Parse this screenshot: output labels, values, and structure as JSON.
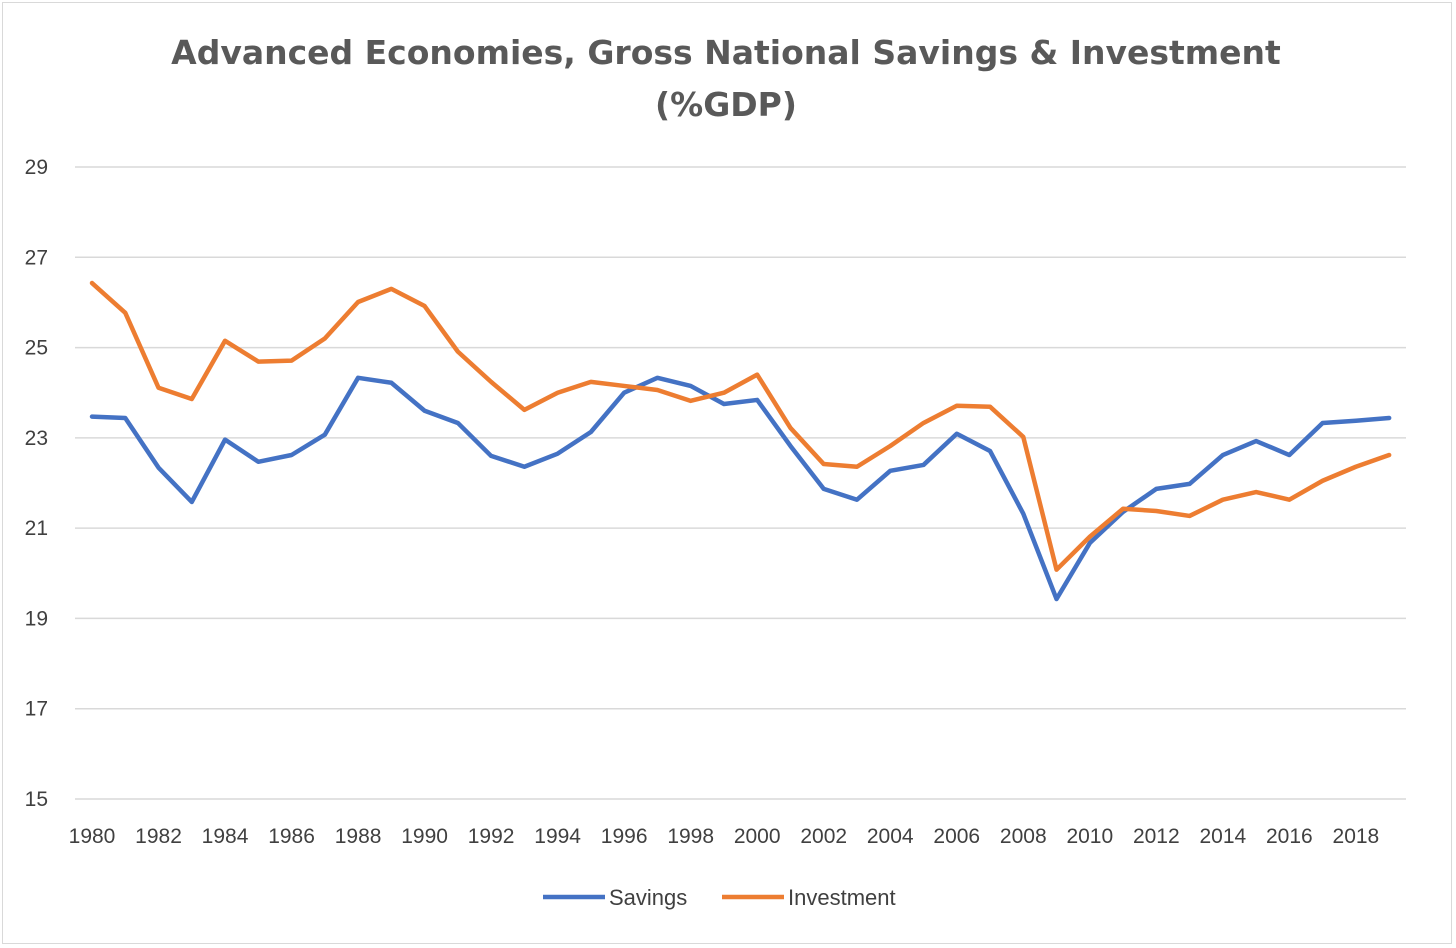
{
  "chart_data": {
    "type": "line",
    "title": "Advanced Economies, Gross National Savings & Investment",
    "subtitle": "(%GDP)",
    "xlabel": "",
    "ylabel": "",
    "ylim": [
      15,
      29
    ],
    "yticks": [
      15,
      17,
      19,
      21,
      23,
      25,
      27,
      29
    ],
    "xtick_labels": [
      "1980",
      "1982",
      "1984",
      "1986",
      "1988",
      "1990",
      "1992",
      "1994",
      "1996",
      "1998",
      "2000",
      "2002",
      "2004",
      "2006",
      "2008",
      "2010",
      "2012",
      "2014",
      "2016",
      "2018"
    ],
    "grid": true,
    "legend_position": "bottom",
    "x": [
      1980,
      1981,
      1982,
      1983,
      1984,
      1985,
      1986,
      1987,
      1988,
      1989,
      1990,
      1991,
      1992,
      1993,
      1994,
      1995,
      1996,
      1997,
      1998,
      1999,
      2000,
      2001,
      2002,
      2003,
      2004,
      2005,
      2006,
      2007,
      2008,
      2009,
      2010,
      2011,
      2012,
      2013,
      2014,
      2015,
      2016,
      2017,
      2018,
      2019
    ],
    "series": [
      {
        "name": "Savings",
        "color": "#4472c4",
        "values": [
          23.47,
          23.44,
          22.34,
          21.58,
          22.96,
          22.47,
          22.62,
          23.07,
          24.33,
          24.22,
          23.6,
          23.33,
          22.6,
          22.36,
          22.65,
          23.13,
          24.0,
          24.33,
          24.15,
          23.75,
          23.84,
          22.82,
          21.87,
          21.63,
          22.27,
          22.4,
          23.09,
          22.71,
          21.32,
          19.43,
          20.67,
          21.36,
          21.87,
          21.98,
          22.62,
          22.93,
          22.62,
          23.33,
          23.38,
          23.44
        ]
      },
      {
        "name": "Investment",
        "color": "#ed7d31",
        "values": [
          26.43,
          25.77,
          24.11,
          23.86,
          25.15,
          24.69,
          24.71,
          25.2,
          26.01,
          26.3,
          25.92,
          24.91,
          24.24,
          23.62,
          24.0,
          24.24,
          24.15,
          24.06,
          23.82,
          24.0,
          24.4,
          23.22,
          22.42,
          22.36,
          22.82,
          23.33,
          23.71,
          23.69,
          23.02,
          20.08,
          20.81,
          21.43,
          21.38,
          21.27,
          21.63,
          21.8,
          21.63,
          22.05,
          22.36,
          22.62
        ]
      }
    ]
  }
}
